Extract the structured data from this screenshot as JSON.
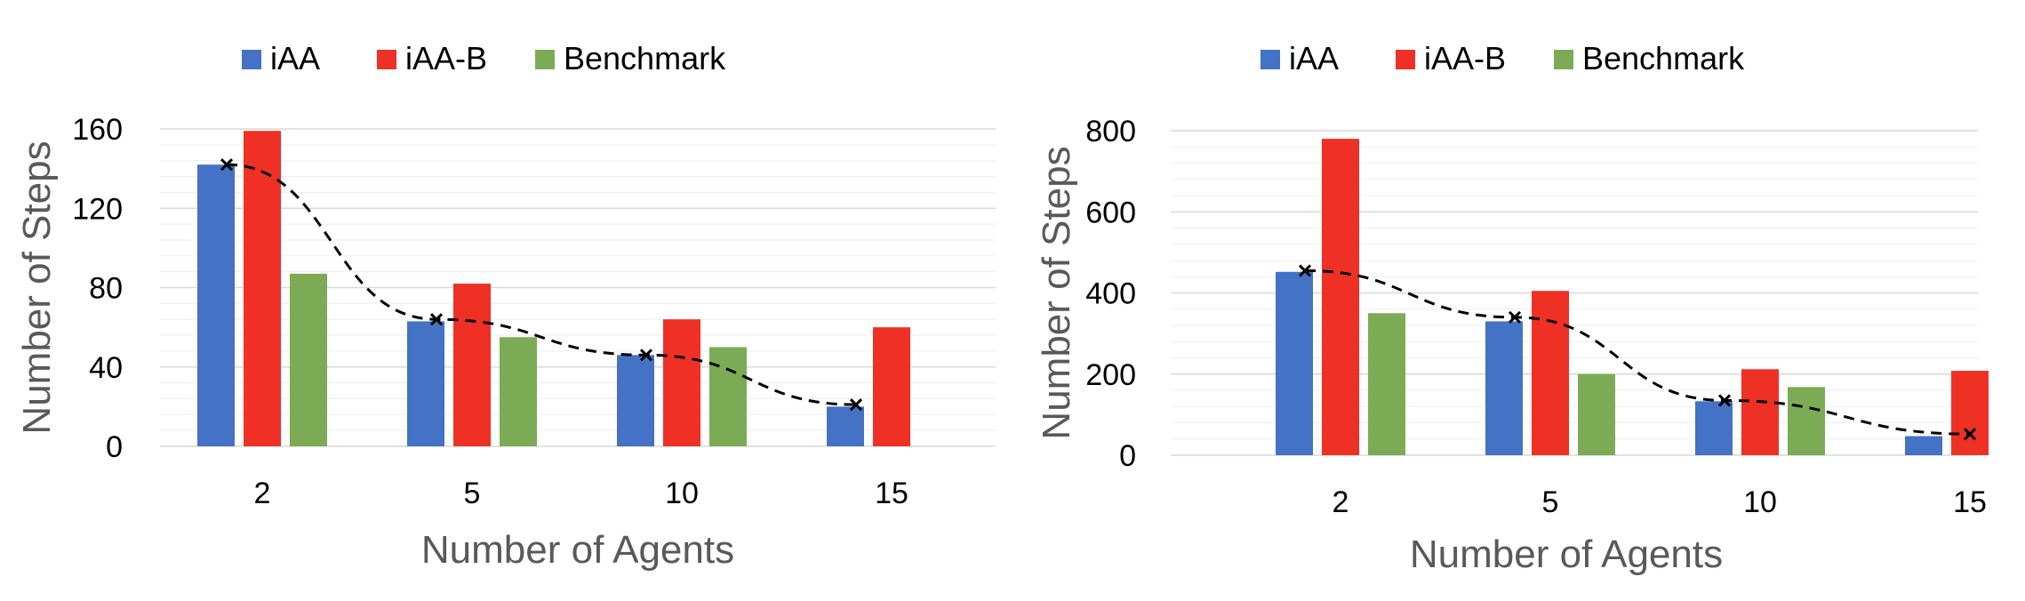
{
  "colors": {
    "iAA": "#4472c4",
    "iAA-B": "#ee3124",
    "Benchmark": "#7cab55",
    "text": "#595959",
    "grid_major": "#d9d9d9",
    "grid_minor": "#eeeeee",
    "trend": "#000000"
  },
  "chart_data": [
    {
      "type": "bar",
      "title": "",
      "xlabel": "Number of Agents",
      "ylabel": "Number of Steps",
      "categories": [
        "2",
        "5",
        "10",
        "15"
      ],
      "series": [
        {
          "name": "iAA",
          "values": [
            142,
            63,
            46,
            20
          ]
        },
        {
          "name": "iAA-B",
          "values": [
            159,
            82,
            64,
            60
          ]
        },
        {
          "name": "Benchmark",
          "values": [
            87,
            55,
            50,
            null
          ]
        }
      ],
      "trend": {
        "style": "dashed",
        "marker": "x",
        "values": [
          142,
          64,
          46,
          21
        ]
      },
      "ylim": [
        0,
        160
      ],
      "yticks": [
        "0",
        "40",
        "80",
        "120",
        "160"
      ],
      "grid": true,
      "legend": "top"
    },
    {
      "type": "bar",
      "title": "",
      "xlabel": "Number of Agents",
      "ylabel": "Number of Steps",
      "categories": [
        "2",
        "5",
        "10",
        "15"
      ],
      "series": [
        {
          "name": "iAA",
          "values": [
            452,
            330,
            133,
            47
          ]
        },
        {
          "name": "iAA-B",
          "values": [
            780,
            405,
            212,
            208
          ]
        },
        {
          "name": "Benchmark",
          "values": [
            350,
            200,
            168,
            null
          ]
        }
      ],
      "trend": {
        "style": "dashed",
        "marker": "x",
        "values": [
          455,
          340,
          135,
          52
        ]
      },
      "ylim": [
        0,
        800
      ],
      "yticks": [
        "0",
        "200",
        "400",
        "600",
        "800"
      ],
      "grid": true,
      "legend": "top"
    }
  ]
}
